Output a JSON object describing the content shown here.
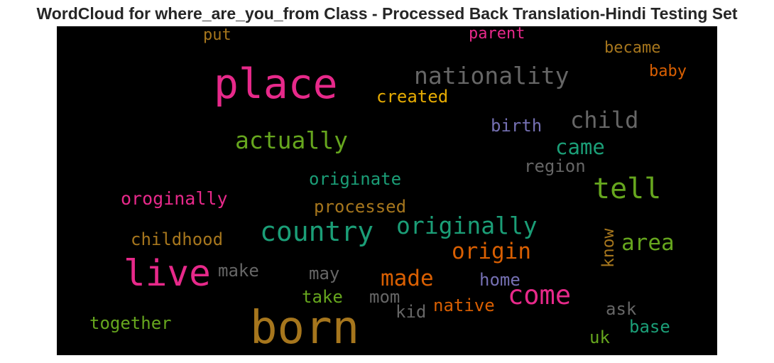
{
  "chart_data": {
    "type": "wordcloud",
    "title": "WordCloud for where_are_you_from Class - Processed Back Translation-Hindi Testing Set",
    "background": "#000000",
    "colormap": "Dark2",
    "words": [
      {
        "text": "born",
        "color": "#a6761d"
      },
      {
        "text": "place",
        "color": "#e7298a"
      },
      {
        "text": "live",
        "color": "#e7298a"
      },
      {
        "text": "country",
        "color": "#1b9e77"
      },
      {
        "text": "nationality",
        "color": "#666666"
      },
      {
        "text": "tell",
        "color": "#66a61e"
      },
      {
        "text": "originally",
        "color": "#1b9e77"
      },
      {
        "text": "come",
        "color": "#e7298a"
      },
      {
        "text": "actually",
        "color": "#66a61e"
      },
      {
        "text": "origin",
        "color": "#d95f02"
      },
      {
        "text": "child",
        "color": "#666666"
      },
      {
        "text": "area",
        "color": "#66a61e"
      },
      {
        "text": "made",
        "color": "#d95f02"
      },
      {
        "text": "came",
        "color": "#1b9e77"
      },
      {
        "text": "oroginally",
        "color": "#e7298a"
      },
      {
        "text": "created",
        "color": "#e6ab02"
      },
      {
        "text": "processed",
        "color": "#a6761d"
      },
      {
        "text": "originate",
        "color": "#1b9e77"
      },
      {
        "text": "childhood",
        "color": "#a6761d"
      },
      {
        "text": "birth",
        "color": "#7570b3"
      },
      {
        "text": "region",
        "color": "#666666"
      },
      {
        "text": "became",
        "color": "#a6761d"
      },
      {
        "text": "baby",
        "color": "#d95f02"
      },
      {
        "text": "parent",
        "color": "#e7298a"
      },
      {
        "text": "put",
        "color": "#a6761d"
      },
      {
        "text": "home",
        "color": "#7570b3"
      },
      {
        "text": "native",
        "color": "#d95f02"
      },
      {
        "text": "know",
        "color": "#a6761d"
      },
      {
        "text": "together",
        "color": "#66a61e"
      },
      {
        "text": "make",
        "color": "#666666"
      },
      {
        "text": "may",
        "color": "#666666"
      },
      {
        "text": "take",
        "color": "#66a61e"
      },
      {
        "text": "mom",
        "color": "#666666"
      },
      {
        "text": "kid",
        "color": "#666666"
      },
      {
        "text": "ask",
        "color": "#666666"
      },
      {
        "text": "base",
        "color": "#1b9e77"
      },
      {
        "text": "uk",
        "color": "#66a61e"
      }
    ]
  }
}
